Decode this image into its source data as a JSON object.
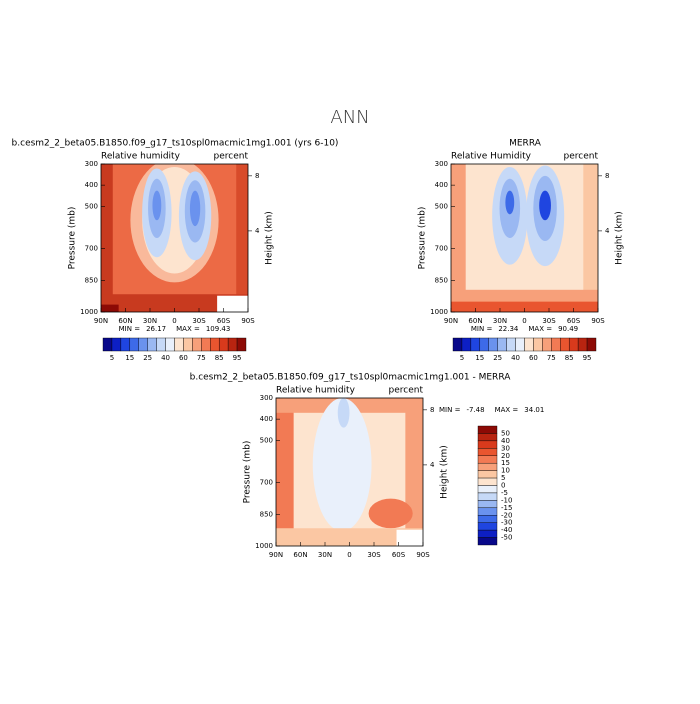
{
  "title": "ANN",
  "panels": [
    {
      "title": "b.cesm2_2_beta05.B1850.f09_g17_ts10spl0macmic1mg1.001 (yrs 6-10)",
      "left_label": "Relative humidity",
      "right_label": "percent",
      "y_label": "Pressure (mb)",
      "y2_label": "Height (km)",
      "xticks": [
        "90N",
        "60N",
        "30N",
        "0",
        "30S",
        "60S",
        "90S"
      ],
      "ylim": [
        1000,
        300
      ],
      "yticks": [
        300,
        400,
        500,
        700,
        850,
        1000
      ],
      "y2ticks": [
        8,
        4
      ],
      "min_label": "MIN =",
      "min": 26.17,
      "max_label": "MAX =",
      "max": 109.43
    },
    {
      "title": "MERRA",
      "left_label": "Relative Humidity",
      "right_label": "percent",
      "y_label": "Pressure (mb)",
      "y2_label": "Height (km)",
      "xticks": [
        "90N",
        "60N",
        "30N",
        "0",
        "30S",
        "60S",
        "90S"
      ],
      "ylim": [
        1000,
        300
      ],
      "yticks": [
        300,
        400,
        500,
        700,
        850,
        1000
      ],
      "y2ticks": [
        8,
        4
      ],
      "min_label": "MIN =",
      "min": 22.34,
      "max_label": "MAX =",
      "max": 90.49
    },
    {
      "title": "b.cesm2_2_beta05.B1850.f09_g17_ts10spl0macmic1mg1.001 - MERRA",
      "left_label": "Relative humidity",
      "right_label": "percent",
      "y_label": "Pressure (mb)",
      "y2_label": "Height (km)",
      "xticks": [
        "90N",
        "60N",
        "30N",
        "0",
        "30S",
        "60S",
        "90S"
      ],
      "ylim": [
        1000,
        300
      ],
      "yticks": [
        300,
        400,
        500,
        700,
        850,
        1000
      ],
      "y2ticks": [
        8,
        4
      ],
      "min_label": "MIN =",
      "min": -7.48,
      "max_label": "MAX =",
      "max": 34.01
    }
  ],
  "colorbars": [
    {
      "labels": [
        5,
        15,
        25,
        40,
        60,
        75,
        85,
        95
      ],
      "colors": [
        "#08088a",
        "#0d1fc4",
        "#1f45e0",
        "#3d6ae8",
        "#6a92ee",
        "#9ab8f2",
        "#c6d9f7",
        "#e9f0fb",
        "#fde4cf",
        "#fbc7a3",
        "#f7a07a",
        "#f27a54",
        "#e9552f",
        "#d93a1c",
        "#b82410",
        "#8c0a05"
      ]
    },
    {
      "labels": [
        5,
        15,
        25,
        40,
        60,
        75,
        85,
        95
      ],
      "colors": [
        "#08088a",
        "#0d1fc4",
        "#1f45e0",
        "#3d6ae8",
        "#6a92ee",
        "#9ab8f2",
        "#c6d9f7",
        "#e9f0fb",
        "#fde4cf",
        "#fbc7a3",
        "#f7a07a",
        "#f27a54",
        "#e9552f",
        "#d93a1c",
        "#b82410",
        "#8c0a05"
      ]
    },
    {
      "labels": [
        50,
        40,
        30,
        20,
        15,
        10,
        5,
        0,
        -5,
        -10,
        -15,
        -20,
        -30,
        -40,
        -50
      ],
      "colors": [
        "#8c0a05",
        "#b82410",
        "#d93a1c",
        "#e9552f",
        "#f27a54",
        "#f7a07a",
        "#fbc7a3",
        "#fde4cf",
        "#e9f0fb",
        "#c6d9f7",
        "#9ab8f2",
        "#6a92ee",
        "#3d6ae8",
        "#1f45e0",
        "#0d1fc4",
        "#08088a"
      ]
    }
  ]
}
